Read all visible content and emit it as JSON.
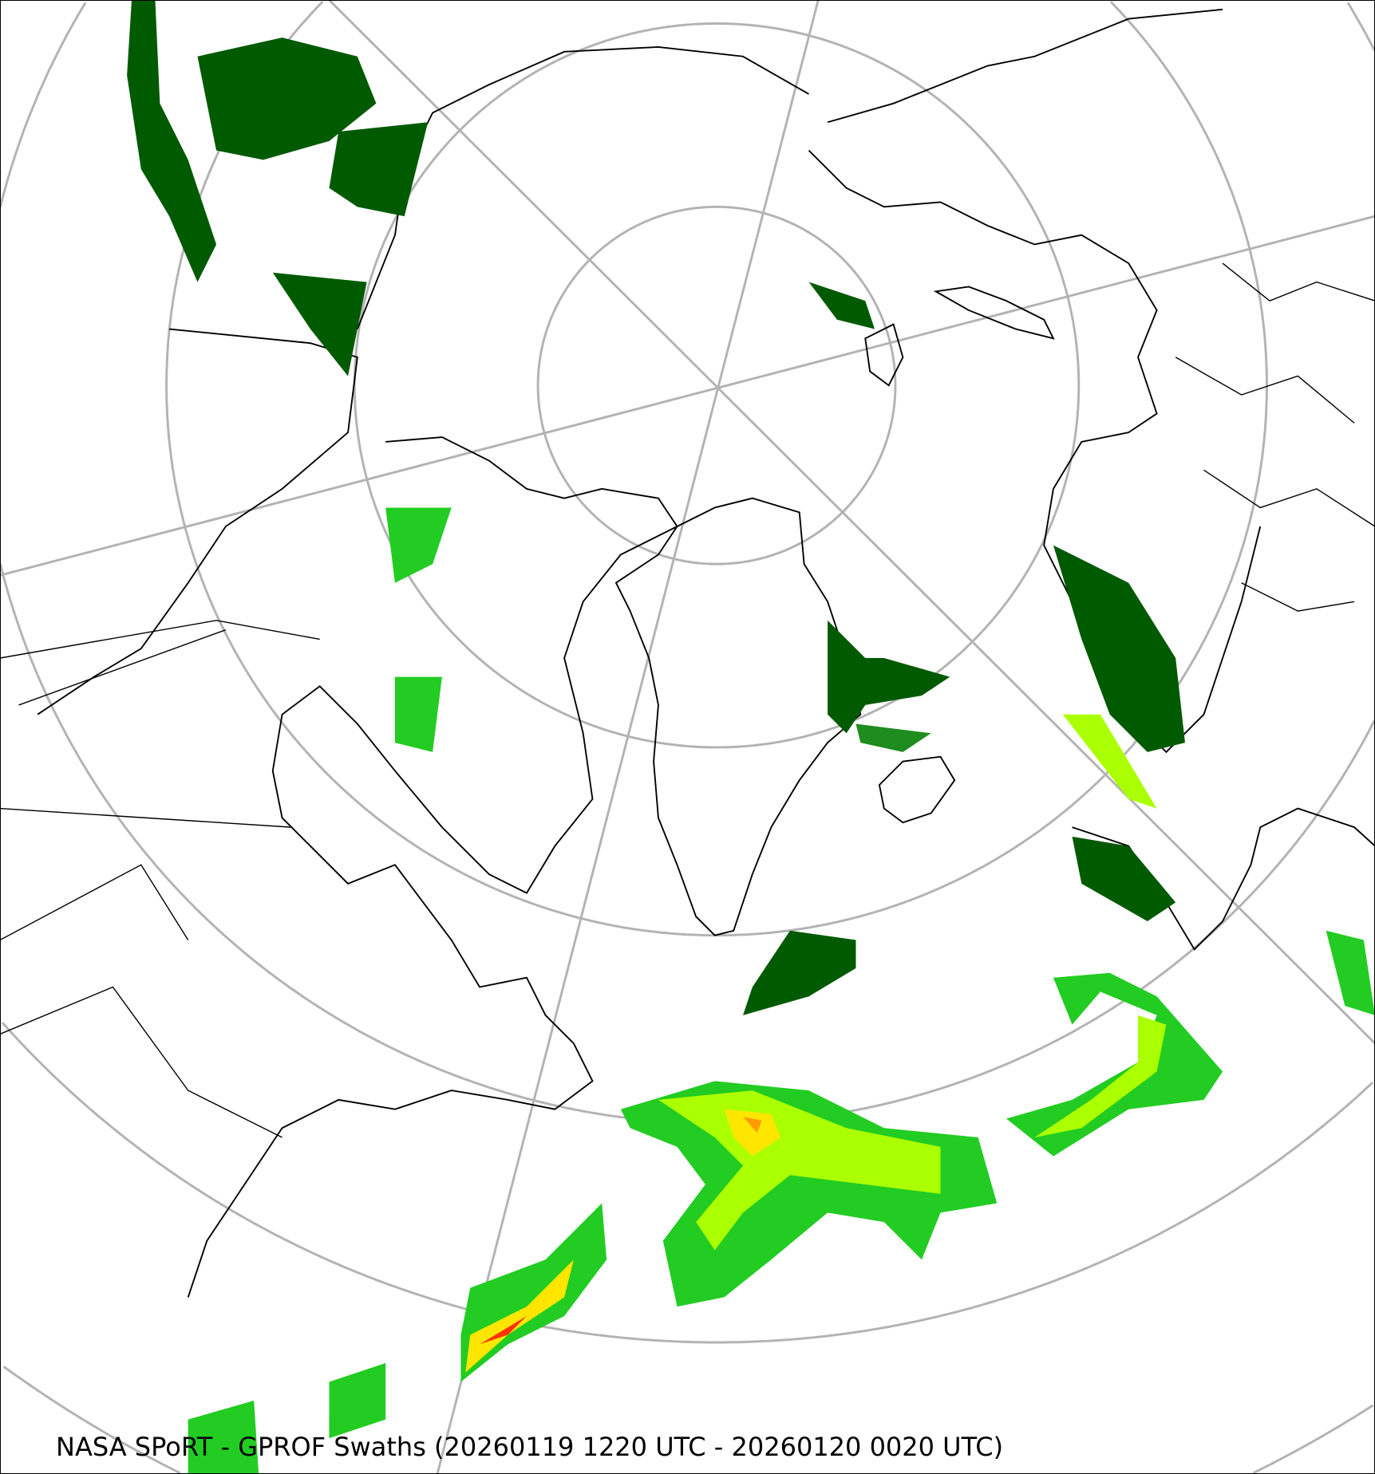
{
  "caption": "NASA SPoRT - GPROF Swaths (20260119 1220 UTC - 20260120 0020 UTC)",
  "projection": "north-polar-stereographic",
  "colors": {
    "graticule": "#b3b3b3",
    "coastline": "#000000",
    "precip_dark": "#005a00",
    "precip_mid": "#1e8c1e",
    "precip_light": "#22cc22",
    "precip_lime": "#aaff00",
    "precip_yellow": "#ffe600",
    "precip_orange": "#ff9a00",
    "precip_red": "#ff3300"
  }
}
